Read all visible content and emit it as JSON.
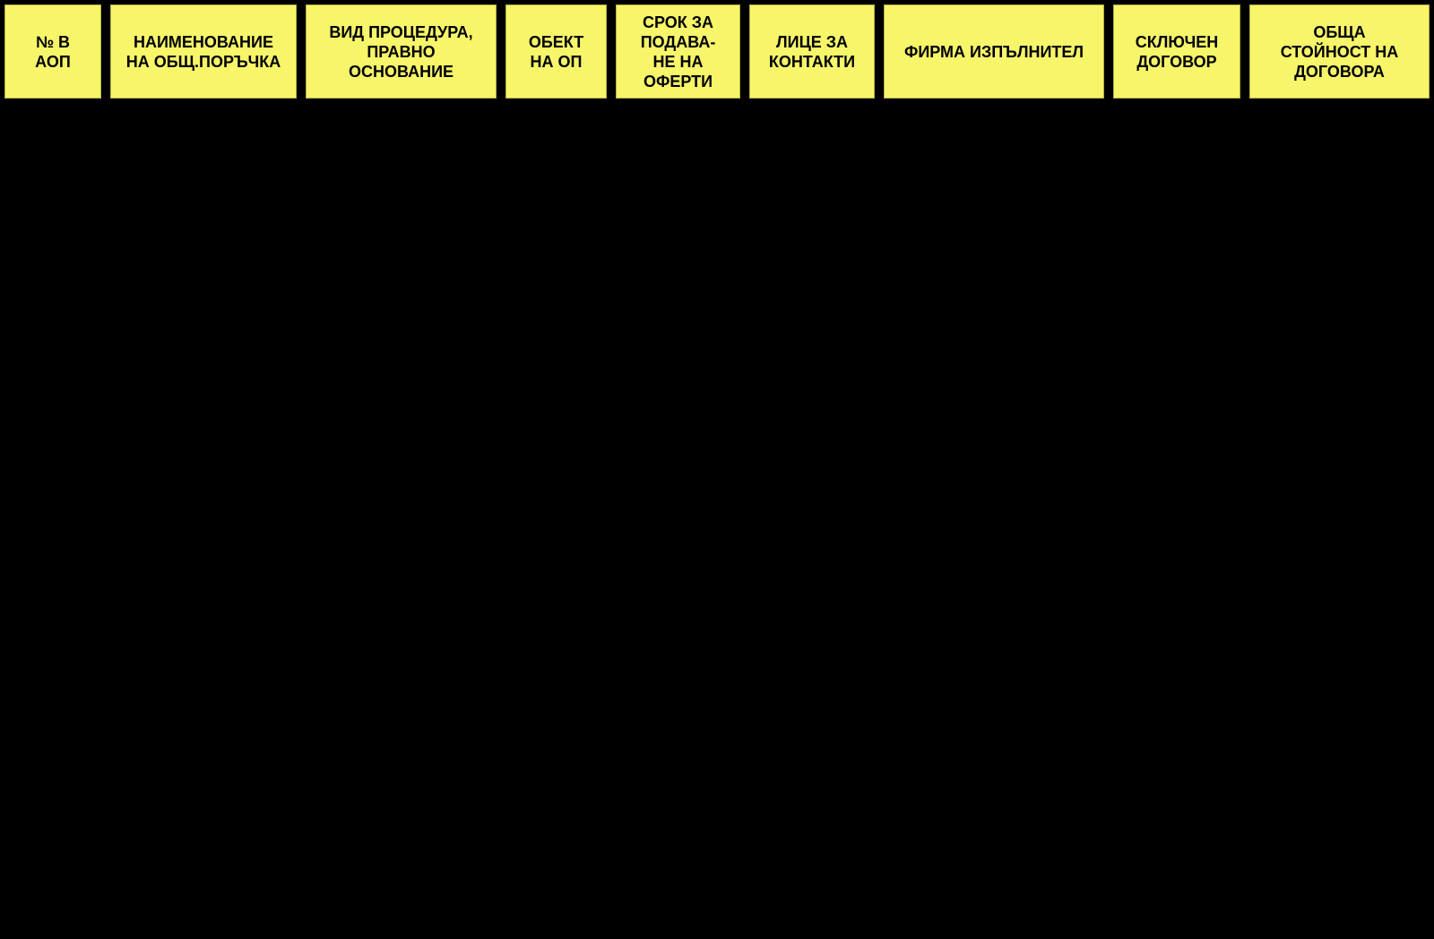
{
  "colors": {
    "page_background": "#000000",
    "header_cell_background": "#F7F569",
    "header_text": "#000000"
  },
  "table": {
    "header_row": [
      {
        "id": "aop_number",
        "label": "№ В\nАОП"
      },
      {
        "id": "procurement_name",
        "label": "НАИМЕНОВАНИЕ\nНА ОБЩ.ПОРЪЧКА"
      },
      {
        "id": "procedure_type",
        "label": "ВИД ПРОЦЕДУРА,\nПРАВНО\nОСНОВАНИЕ"
      },
      {
        "id": "op_object",
        "label": "ОБЕКТ\nНА ОП"
      },
      {
        "id": "offer_deadline",
        "label": "СРОК ЗА\nПОДАВА-\nНЕ НА\nОФЕРТИ"
      },
      {
        "id": "contact_person",
        "label": "ЛИЦЕ ЗА\nКОНТАКТИ"
      },
      {
        "id": "contractor_firm",
        "label": "ФИРМА ИЗПЪЛНИТЕЛ"
      },
      {
        "id": "contract_signed",
        "label": "СКЛЮЧЕН\nДОГОВОР"
      },
      {
        "id": "total_contract_value",
        "label": "ОБЩА\nСТОЙНОСТ НА\nДОГОВОРА"
      }
    ]
  }
}
